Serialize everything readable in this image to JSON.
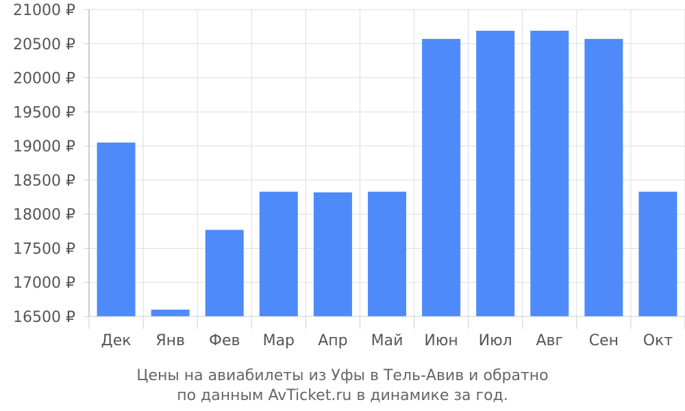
{
  "chart_data": {
    "type": "bar",
    "categories": [
      "Дек",
      "Янв",
      "Фев",
      "Мар",
      "Апр",
      "Май",
      "Июн",
      "Июл",
      "Авг",
      "Сен",
      "Окт"
    ],
    "values": [
      19050,
      16600,
      17770,
      18330,
      18320,
      18330,
      20570,
      20690,
      20690,
      20570,
      18330
    ],
    "ylim": [
      16500,
      21000
    ],
    "yticks": [
      16500,
      17000,
      17500,
      18000,
      18500,
      19000,
      19500,
      20000,
      20500,
      21000
    ],
    "ytick_labels": [
      "16500 ₽",
      "17000 ₽",
      "17500 ₽",
      "18000 ₽",
      "18500 ₽",
      "19000 ₽",
      "19500 ₽",
      "20000 ₽",
      "20500 ₽",
      "21000 ₽"
    ],
    "grid": true,
    "bar_color": "#4e8af9",
    "caption_lines": [
      "Цены на авиабилеты из Уфы в Тель-Авив и обратно",
      "по данным AvTicket.ru в динамике за год."
    ]
  }
}
